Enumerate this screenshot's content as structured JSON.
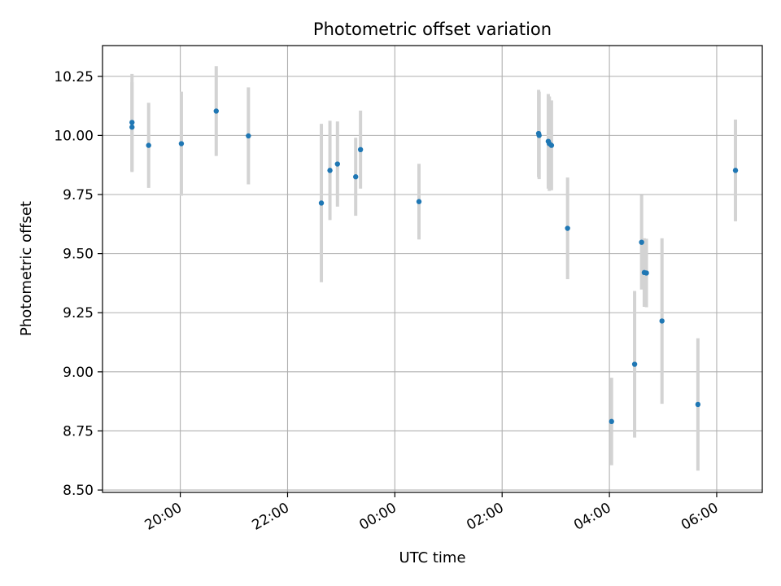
{
  "chart_data": {
    "type": "scatter",
    "title": "Photometric offset variation",
    "xlabel": "UTC time",
    "ylabel": "Photometric offset",
    "xlim_hours": [
      18.55,
      30.85
    ],
    "ylim": [
      8.49,
      10.38
    ],
    "grid": true,
    "x_ticks": [
      {
        "hour": 20,
        "label": "20:00"
      },
      {
        "hour": 22,
        "label": "22:00"
      },
      {
        "hour": 24,
        "label": "00:00"
      },
      {
        "hour": 26,
        "label": "02:00"
      },
      {
        "hour": 28,
        "label": "04:00"
      },
      {
        "hour": 30,
        "label": "06:00"
      }
    ],
    "y_ticks": [
      {
        "value": 8.5,
        "label": "8.50"
      },
      {
        "value": 8.75,
        "label": "8.75"
      },
      {
        "value": 9.0,
        "label": "9.00"
      },
      {
        "value": 9.25,
        "label": "9.25"
      },
      {
        "value": 9.5,
        "label": "9.50"
      },
      {
        "value": 9.75,
        "label": "9.75"
      },
      {
        "value": 10.0,
        "label": "10.00"
      },
      {
        "value": 10.25,
        "label": "10.25"
      }
    ],
    "series": [
      {
        "name": "offset",
        "marker_color": "#1f77b4",
        "errorbar_color": "#d3d3d3",
        "points": [
          {
            "time": "19:06",
            "hour": 19.1,
            "y": 10.055,
            "err": 0.205
          },
          {
            "time": "19:06",
            "hour": 19.1,
            "y": 10.035,
            "err": 0.19
          },
          {
            "time": "19:24",
            "hour": 19.41,
            "y": 9.958,
            "err": 0.18
          },
          {
            "time": "20:01",
            "hour": 20.02,
            "y": 9.965,
            "err": 0.22
          },
          {
            "time": "20:40",
            "hour": 20.67,
            "y": 10.103,
            "err": 0.19
          },
          {
            "time": "21:16",
            "hour": 21.27,
            "y": 9.998,
            "err": 0.205
          },
          {
            "time": "22:37",
            "hour": 22.63,
            "y": 9.714,
            "err": 0.335
          },
          {
            "time": "22:46",
            "hour": 22.79,
            "y": 9.852,
            "err": 0.21
          },
          {
            "time": "22:55",
            "hour": 22.93,
            "y": 9.879,
            "err": 0.18
          },
          {
            "time": "23:15",
            "hour": 23.27,
            "y": 9.825,
            "err": 0.165
          },
          {
            "time": "23:21",
            "hour": 23.36,
            "y": 9.94,
            "err": 0.165
          },
          {
            "time": "00:27",
            "hour": 24.45,
            "y": 9.72,
            "err": 0.16
          },
          {
            "time": "02:40",
            "hour": 26.68,
            "y": 10.008,
            "err": 0.185
          },
          {
            "time": "02:41",
            "hour": 26.69,
            "y": 10.0,
            "err": 0.185
          },
          {
            "time": "02:51",
            "hour": 26.86,
            "y": 9.975,
            "err": 0.2
          },
          {
            "time": "02:53",
            "hour": 26.88,
            "y": 9.965,
            "err": 0.2
          },
          {
            "time": "02:55",
            "hour": 26.92,
            "y": 9.958,
            "err": 0.19
          },
          {
            "time": "03:13",
            "hour": 27.22,
            "y": 9.607,
            "err": 0.215
          },
          {
            "time": "04:02",
            "hour": 28.04,
            "y": 8.79,
            "err": 0.185
          },
          {
            "time": "04:28",
            "hour": 28.47,
            "y": 9.032,
            "err": 0.31
          },
          {
            "time": "04:36",
            "hour": 28.6,
            "y": 9.548,
            "err": 0.2
          },
          {
            "time": "04:39",
            "hour": 28.65,
            "y": 9.42,
            "err": 0.145
          },
          {
            "time": "04:41",
            "hour": 28.69,
            "y": 9.418,
            "err": 0.145
          },
          {
            "time": "04:59",
            "hour": 28.98,
            "y": 9.215,
            "err": 0.35
          },
          {
            "time": "05:39",
            "hour": 29.65,
            "y": 8.862,
            "err": 0.28
          },
          {
            "time": "06:21",
            "hour": 30.35,
            "y": 9.852,
            "err": 0.215
          }
        ]
      }
    ]
  }
}
